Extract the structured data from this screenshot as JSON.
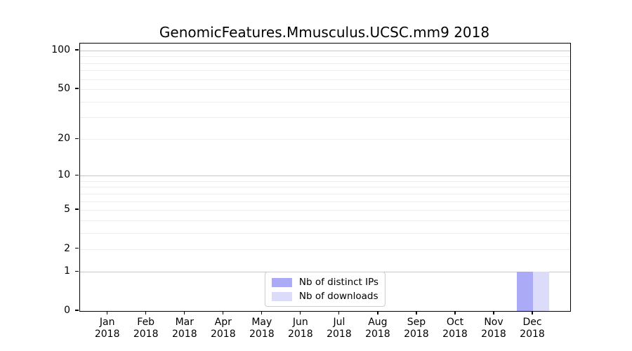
{
  "title": "GenomicFeatures.Mmusculus.UCSC.mm9 2018",
  "legend": {
    "items": [
      {
        "label": "Nb of distinct IPs"
      },
      {
        "label": "Nb of downloads"
      }
    ]
  },
  "axes": {
    "x_months": [
      "Jan",
      "Feb",
      "Mar",
      "Apr",
      "May",
      "Jun",
      "Jul",
      "Aug",
      "Sep",
      "Oct",
      "Nov",
      "Dec"
    ],
    "x_year": "2018",
    "y_tick_labels": [
      "100",
      "50",
      "20",
      "10",
      "5",
      "2",
      "1",
      "0"
    ]
  },
  "chart_data": {
    "type": "bar",
    "title": "GenomicFeatures.Mmusculus.UCSC.mm9 2018",
    "categories": [
      "Jan 2018",
      "Feb 2018",
      "Mar 2018",
      "Apr 2018",
      "May 2018",
      "Jun 2018",
      "Jul 2018",
      "Aug 2018",
      "Sep 2018",
      "Oct 2018",
      "Nov 2018",
      "Dec 2018"
    ],
    "series": [
      {
        "name": "Nb of distinct IPs",
        "color": "#aaaaf6",
        "values": [
          0,
          0,
          0,
          0,
          0,
          0,
          0,
          0,
          0,
          0,
          0,
          1
        ]
      },
      {
        "name": "Nb of downloads",
        "color": "#dcdcfa",
        "values": [
          0,
          0,
          0,
          0,
          0,
          0,
          0,
          0,
          0,
          0,
          0,
          1
        ]
      }
    ],
    "yscale": "log1p",
    "ylim": [
      0,
      113
    ],
    "ytick_values": [
      100,
      50,
      20,
      10,
      5,
      2,
      1,
      0
    ],
    "major_gridlines": [
      1,
      10,
      100
    ],
    "minor_gridlines": [
      2,
      3,
      4,
      5,
      6,
      7,
      8,
      9,
      20,
      30,
      40,
      50,
      60,
      70,
      80,
      90
    ],
    "grid": true,
    "legend_position": "lower center inside"
  },
  "colors": {
    "grid_major": "#c7c7c7",
    "grid_minor": "#ededed",
    "axis_frame": "#000000",
    "background": "#ffffff"
  }
}
